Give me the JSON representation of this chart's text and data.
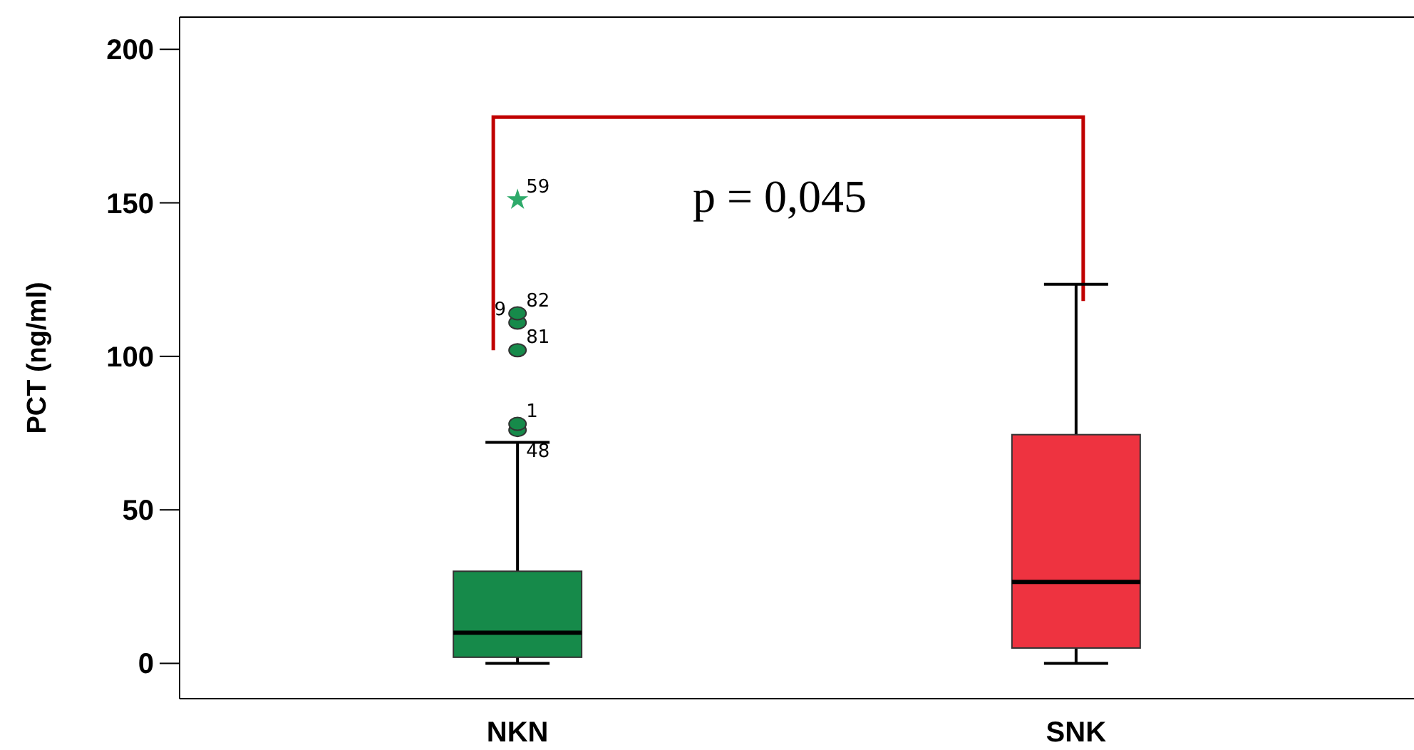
{
  "chart_data": {
    "type": "box",
    "ylabel": "PCT (ng/ml)",
    "categories": [
      "NKN",
      "SNK"
    ],
    "colors": [
      "#168a4a",
      "#ee3340"
    ],
    "boxes": [
      {
        "low": 0,
        "q1": 2,
        "median": 10,
        "q3": 30,
        "high": 72,
        "outliers": [
          76,
          78,
          102,
          111,
          114
        ]
      },
      {
        "low": 0,
        "q1": 5,
        "median": 26.5,
        "q3": 74.5,
        "high": 123.5
      }
    ],
    "series": [
      {
        "type": "scatter",
        "x": [
          "NKN"
        ],
        "values": [
          151
        ],
        "color": "#2eaa6a",
        "marker": "star"
      }
    ],
    "ylim": [
      -11.5,
      210.5
    ],
    "yticks": [
      0,
      50,
      100,
      150,
      200
    ],
    "annotations": [
      "p = 0,045",
      "59",
      "82",
      "9",
      "81",
      "1",
      "48"
    ]
  }
}
